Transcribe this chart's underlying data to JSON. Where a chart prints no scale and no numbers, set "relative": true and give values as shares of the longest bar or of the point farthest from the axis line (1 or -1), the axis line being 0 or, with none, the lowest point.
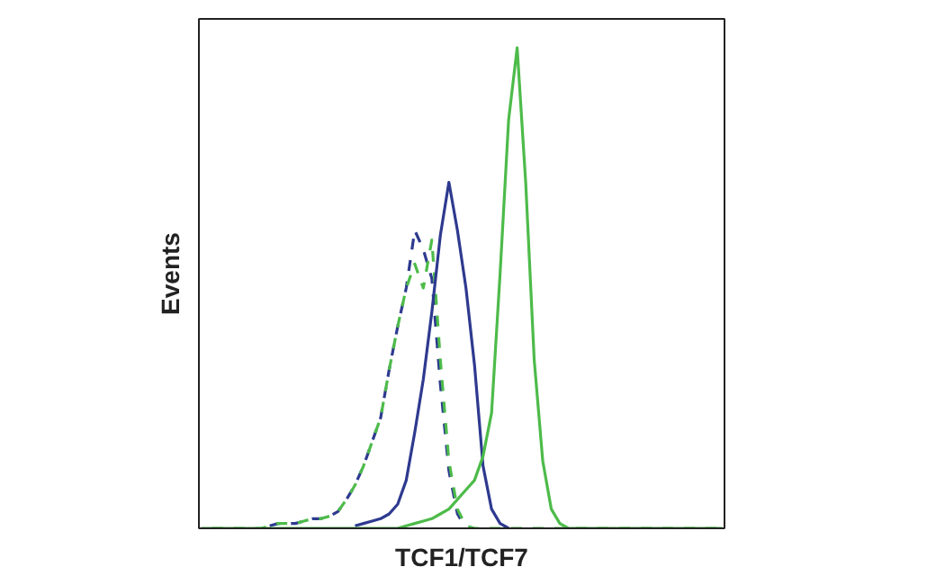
{
  "chart_data": {
    "type": "line",
    "xlabel": "TCF1/TCF7",
    "ylabel": "Events",
    "relative": true,
    "marker": "none",
    "categories": [
      null,
      null,
      null,
      null,
      null,
      null,
      null,
      null,
      null,
      null,
      null,
      null,
      null,
      null,
      null,
      null,
      null,
      null,
      null,
      null,
      null,
      null,
      null,
      null,
      null,
      null,
      null,
      null,
      null,
      null,
      null,
      null,
      null,
      null,
      null,
      null,
      null,
      null,
      null,
      null,
      null,
      null,
      null,
      null,
      null,
      null,
      null,
      null,
      null,
      null,
      null,
      null,
      null,
      null,
      null,
      null,
      null,
      null,
      null,
      null,
      null,
      null
    ],
    "series": [
      {
        "color": "#2e3a8f",
        "line_style": "dashed",
        "values": [
          null,
          null,
          null,
          null,
          null,
          null,
          null,
          null,
          0.005,
          0.01,
          0.01,
          0.01,
          0.015,
          0.02,
          0.02,
          0.025,
          0.035,
          0.06,
          0.09,
          0.13,
          0.18,
          0.23,
          0.33,
          0.42,
          0.5,
          0.62,
          0.58,
          0.52,
          0.3,
          0.12,
          0.03,
          0,
          null,
          null,
          null,
          null,
          null,
          null,
          null,
          null,
          null,
          null,
          null,
          null,
          null,
          null,
          null,
          null,
          null,
          null,
          null,
          null,
          null,
          null,
          null,
          null,
          null,
          null,
          null,
          null,
          null,
          null
        ]
      },
      {
        "color": "#4dbb4a",
        "line_style": "dashed",
        "values": [
          0,
          0,
          0,
          0,
          0,
          0,
          0,
          0,
          0.005,
          0.01,
          0.01,
          0.01,
          0.015,
          0.02,
          0.02,
          0.025,
          0.035,
          0.06,
          0.09,
          0.13,
          0.18,
          0.23,
          0.33,
          0.42,
          0.5,
          0.55,
          0.5,
          0.6,
          0.35,
          0.14,
          0.04,
          0.005,
          0,
          0,
          0,
          0,
          0,
          0,
          0,
          0,
          0,
          0,
          0,
          0,
          0,
          0,
          0,
          0,
          0,
          0,
          0,
          0,
          0,
          0,
          0,
          0,
          0,
          0,
          0,
          0,
          0,
          0
        ]
      },
      {
        "color": "#2e3a8f",
        "line_style": "solid",
        "values": [
          null,
          null,
          null,
          null,
          null,
          null,
          null,
          null,
          null,
          null,
          null,
          null,
          null,
          null,
          null,
          null,
          null,
          null,
          0.005,
          0.01,
          0.015,
          0.02,
          0.03,
          0.05,
          0.1,
          0.2,
          0.31,
          0.45,
          0.61,
          0.72,
          0.62,
          0.5,
          0.34,
          0.13,
          0.04,
          0.01,
          0,
          null,
          null,
          null,
          null,
          null,
          null,
          null,
          null,
          null,
          null,
          null,
          null,
          null,
          null,
          null,
          null,
          null,
          null,
          null,
          null,
          null,
          null,
          null,
          null,
          null
        ]
      },
      {
        "color": "#4dbb4a",
        "line_style": "solid",
        "values": [
          0,
          0,
          0,
          0,
          0,
          0,
          0,
          0,
          0,
          0,
          0,
          0,
          0,
          0,
          0,
          0,
          0,
          0,
          0,
          0,
          0,
          0,
          0,
          0,
          0.005,
          0.01,
          0.015,
          0.02,
          0.03,
          0.04,
          0.06,
          0.08,
          0.1,
          0.15,
          0.24,
          0.53,
          0.85,
          1.0,
          0.72,
          0.35,
          0.14,
          0.04,
          0.01,
          0,
          0,
          0,
          0,
          0,
          0,
          0,
          0,
          0,
          0,
          0,
          0,
          0,
          0,
          0,
          0,
          0,
          0,
          0
        ]
      }
    ]
  }
}
